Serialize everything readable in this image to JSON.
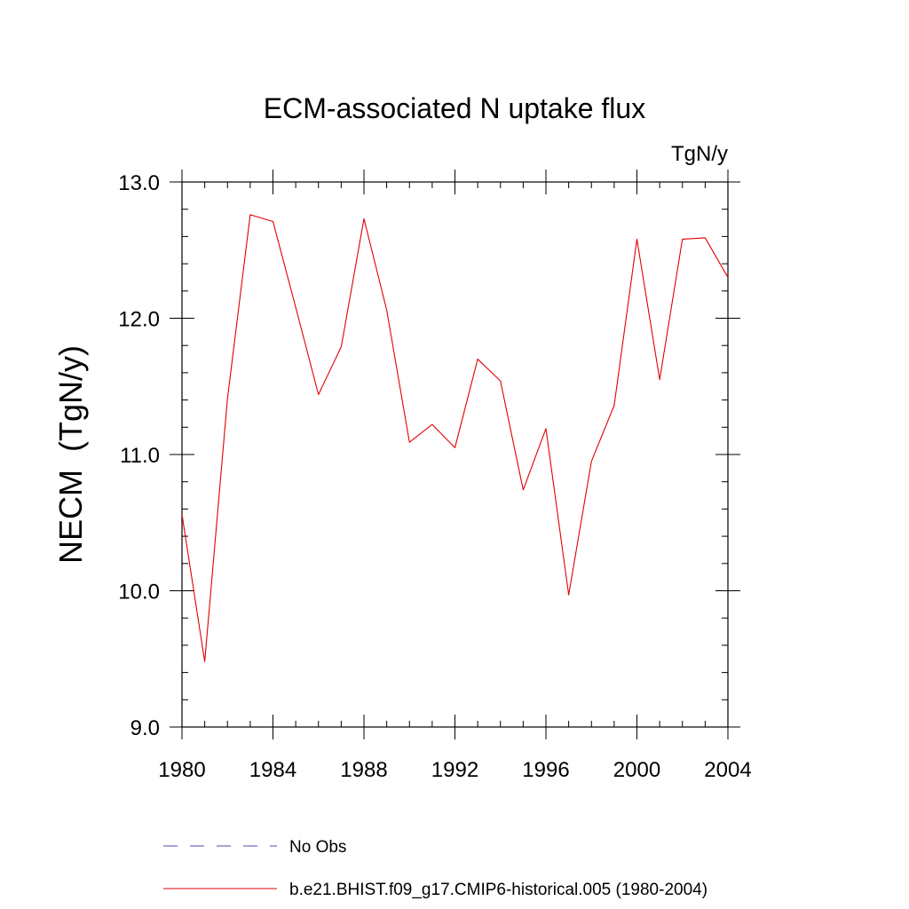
{
  "chart_data": {
    "type": "line",
    "title": "ECM-associated N uptake flux",
    "units_label": "TgN/y",
    "xlabel": "",
    "ylabel": "NECM  (TgN/y)",
    "xlim": [
      1980,
      2004
    ],
    "ylim": [
      9.0,
      13.0
    ],
    "x_ticks": [
      1980,
      1984,
      1988,
      1992,
      1996,
      2000,
      2004
    ],
    "x_tick_labels": [
      "1980",
      "1984",
      "1988",
      "1992",
      "1996",
      "2000",
      "2004"
    ],
    "y_ticks": [
      9.0,
      10.0,
      11.0,
      12.0,
      13.0
    ],
    "y_tick_labels": [
      "9.0",
      "10.0",
      "11.0",
      "12.0",
      "13.0"
    ],
    "grid": false,
    "legend_position": "bottom",
    "series": [
      {
        "name": "No Obs",
        "color": "#4b4bb4",
        "style": "dashed",
        "x": [],
        "values": []
      },
      {
        "name": "b.e21.BHIST.f09_g17.CMIP6-historical.005 (1980-2004)",
        "color": "#e00000",
        "style": "solid",
        "x": [
          1980,
          1981,
          1982,
          1983,
          1984,
          1985,
          1986,
          1987,
          1988,
          1989,
          1990,
          1991,
          1992,
          1993,
          1994,
          1995,
          1996,
          1997,
          1998,
          1999,
          2000,
          2001,
          2002,
          2003,
          2004
        ],
        "values": [
          10.56,
          9.48,
          11.41,
          12.76,
          12.71,
          12.08,
          11.44,
          11.79,
          12.73,
          12.06,
          11.09,
          11.22,
          11.05,
          11.7,
          11.54,
          10.74,
          11.19,
          9.97,
          10.95,
          11.36,
          12.58,
          11.55,
          12.58,
          12.59,
          12.3
        ]
      }
    ]
  }
}
